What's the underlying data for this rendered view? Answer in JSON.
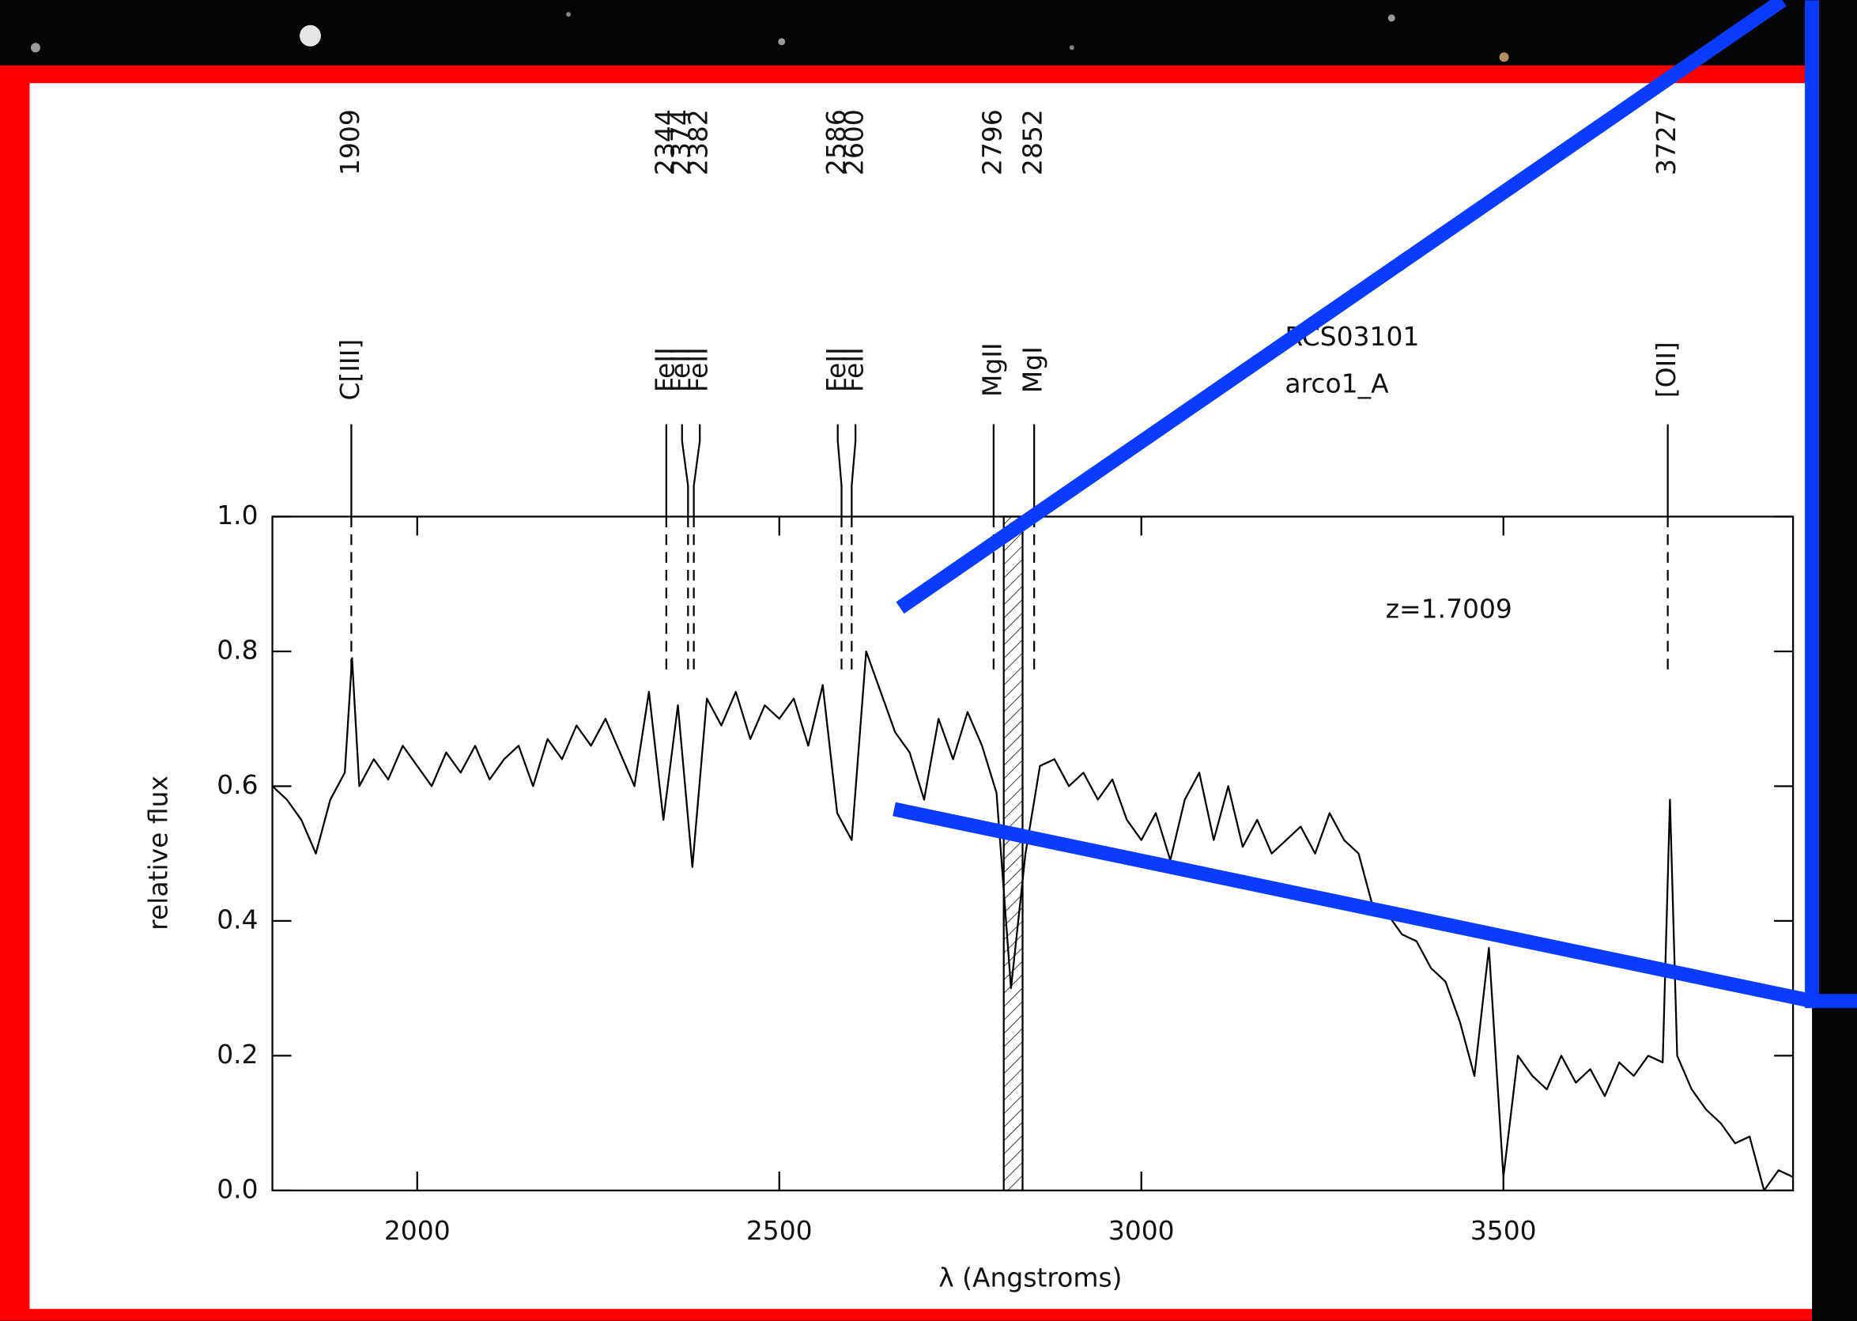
{
  "chart_data": {
    "type": "line",
    "x_label": "λ (Angstroms)",
    "y_label": "relative flux",
    "xlim": [
      1800,
      3900
    ],
    "ylim": [
      0,
      1
    ],
    "xticks": [
      2000,
      2500,
      3000,
      3500
    ],
    "yticks": [
      {
        "value": 0,
        "label": "0.0"
      },
      0.2,
      0.4,
      0.6,
      0.8,
      {
        "value": 1,
        "label": "1.0"
      }
    ],
    "object": "RCS03101",
    "image": "arco1_A",
    "redshift": "z=1.7009",
    "masked": [
      2810,
      2836
    ],
    "lines": [
      {
        "wavelength": 1909,
        "label": "C[III]"
      },
      {
        "wavelength": 2344,
        "label": "FeII"
      },
      {
        "wavelength": 2374,
        "label": "FeII"
      },
      {
        "wavelength": 2382,
        "label": "FeII"
      },
      {
        "wavelength": 2586,
        "label": "FeII"
      },
      {
        "wavelength": 2600,
        "label": "FeII"
      },
      {
        "wavelength": 2796,
        "label": "MgII"
      },
      {
        "wavelength": 2852,
        "label": "MgI"
      },
      {
        "wavelength": 3727,
        "label": "[OII]"
      }
    ],
    "color": "#000000",
    "x": [
      1800,
      1820,
      1840,
      1860,
      1880,
      1900,
      1910,
      1920,
      1940,
      1960,
      1980,
      2000,
      2020,
      2040,
      2060,
      2080,
      2100,
      2120,
      2140,
      2160,
      2180,
      2200,
      2220,
      2240,
      2260,
      2280,
      2300,
      2320,
      2340,
      2360,
      2380,
      2400,
      2420,
      2440,
      2460,
      2480,
      2500,
      2520,
      2540,
      2560,
      2580,
      2600,
      2620,
      2640,
      2660,
      2680,
      2700,
      2720,
      2740,
      2760,
      2780,
      2800,
      2820,
      2840,
      2860,
      2880,
      2900,
      2920,
      2940,
      2960,
      2980,
      3000,
      3020,
      3040,
      3060,
      3080,
      3100,
      3120,
      3140,
      3160,
      3180,
      3200,
      3220,
      3240,
      3260,
      3280,
      3300,
      3320,
      3340,
      3360,
      3380,
      3400,
      3420,
      3440,
      3460,
      3480,
      3500,
      3520,
      3540,
      3560,
      3580,
      3600,
      3620,
      3640,
      3660,
      3680,
      3700,
      3720,
      3730,
      3740,
      3760,
      3780,
      3800,
      3820,
      3840,
      3860,
      3880,
      3900
    ],
    "values": [
      0.6,
      0.58,
      0.55,
      0.5,
      0.58,
      0.62,
      0.79,
      0.6,
      0.64,
      0.61,
      0.66,
      0.63,
      0.6,
      0.65,
      0.62,
      0.66,
      0.61,
      0.64,
      0.66,
      0.6,
      0.67,
      0.64,
      0.69,
      0.66,
      0.7,
      0.65,
      0.6,
      0.74,
      0.55,
      0.72,
      0.48,
      0.73,
      0.69,
      0.74,
      0.67,
      0.72,
      0.7,
      0.73,
      0.66,
      0.75,
      0.56,
      0.52,
      0.8,
      0.74,
      0.68,
      0.65,
      0.58,
      0.7,
      0.64,
      0.71,
      0.66,
      0.59,
      0.3,
      0.5,
      0.63,
      0.64,
      0.6,
      0.62,
      0.58,
      0.61,
      0.55,
      0.52,
      0.56,
      0.49,
      0.58,
      0.62,
      0.52,
      0.6,
      0.51,
      0.55,
      0.5,
      0.52,
      0.54,
      0.5,
      0.56,
      0.52,
      0.5,
      0.42,
      0.41,
      0.38,
      0.37,
      0.33,
      0.31,
      0.25,
      0.17,
      0.36,
      0.02,
      0.2,
      0.17,
      0.15,
      0.2,
      0.16,
      0.18,
      0.14,
      0.19,
      0.17,
      0.2,
      0.19,
      0.58,
      0.2,
      0.15,
      0.12,
      0.1,
      0.07,
      0.08,
      0.0,
      0.03,
      0.02
    ]
  }
}
